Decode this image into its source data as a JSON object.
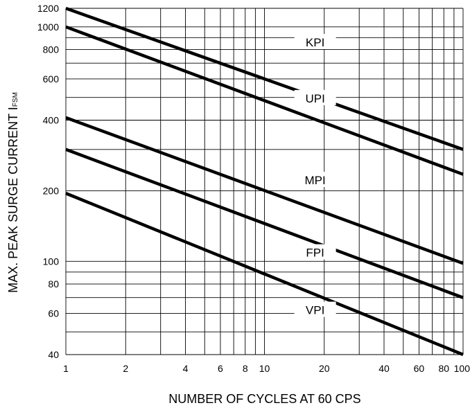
{
  "chart_data": {
    "type": "line",
    "xlabel": "NUMBER  OF  CYCLES  AT 60 CPS",
    "ylabel_main": "MAX. PEAK  SURGE CURRENT  I",
    "ylabel_sub": "FSM",
    "x_scale": "log",
    "y_scale": "log",
    "xlim": [
      1,
      100
    ],
    "ylim": [
      40,
      1200
    ],
    "grid": true,
    "x_ticks": [
      1,
      2,
      4,
      6,
      8,
      10,
      20,
      40,
      60,
      80,
      100
    ],
    "x_tick_labels": [
      "1",
      "2",
      "4",
      "6",
      "8",
      "10",
      "20",
      "40",
      "60",
      "80",
      "100"
    ],
    "y_ticks": [
      40,
      60,
      80,
      100,
      200,
      400,
      600,
      800,
      1000,
      1200
    ],
    "y_tick_labels": [
      "40",
      "60",
      "80",
      "100",
      "200",
      "400",
      "600",
      "800",
      "1000",
      "1200"
    ],
    "series": [
      {
        "name": "KPI",
        "x": [
          1,
          100
        ],
        "y": [
          1200,
          300
        ]
      },
      {
        "name": "UPI",
        "x": [
          1,
          100
        ],
        "y": [
          1000,
          235
        ]
      },
      {
        "name": "MPI",
        "x": [
          1,
          100
        ],
        "y": [
          410,
          98
        ]
      },
      {
        "name": "FPI",
        "x": [
          1,
          100
        ],
        "y": [
          300,
          70
        ]
      },
      {
        "name": "VPI",
        "x": [
          1,
          100
        ],
        "y": [
          195,
          40
        ]
      }
    ],
    "series_label_positions": [
      {
        "name": "KPI",
        "x": 18,
        "y": 860
      },
      {
        "name": "UPI",
        "x": 18,
        "y": 496
      },
      {
        "name": "MPI",
        "x": 18,
        "y": 222
      },
      {
        "name": "FPI",
        "x": 18,
        "y": 109
      },
      {
        "name": "VPI",
        "x": 18,
        "y": 62
      }
    ]
  }
}
